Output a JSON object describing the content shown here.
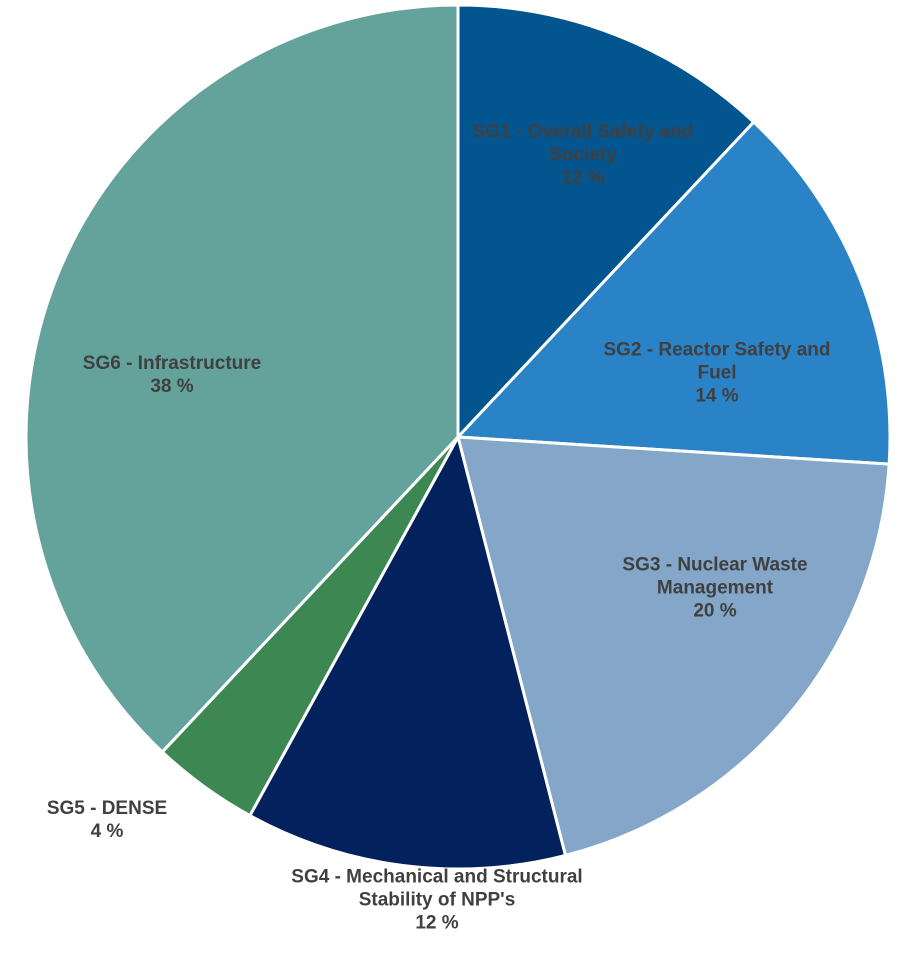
{
  "chart_data": {
    "type": "pie",
    "categories": [
      "SG1 - Overall Safety and Society",
      "SG2 - Reactor Safety and Fuel",
      "SG3 - Nuclear Waste Management",
      "SG4 - Mechanical and Structural Stability of NPP's",
      "SG5 - DENSE",
      "SG6 - Infrastructure"
    ],
    "values": [
      12,
      14,
      20,
      12,
      4,
      38
    ],
    "value_labels": [
      "12 %",
      "14 %",
      "20 %",
      "12 %",
      "4 %",
      "38 %"
    ],
    "colors": [
      "#03558f",
      "#2a82c7",
      "#83a6c9",
      "#03215c",
      "#3d8753",
      "#64a29c"
    ]
  }
}
